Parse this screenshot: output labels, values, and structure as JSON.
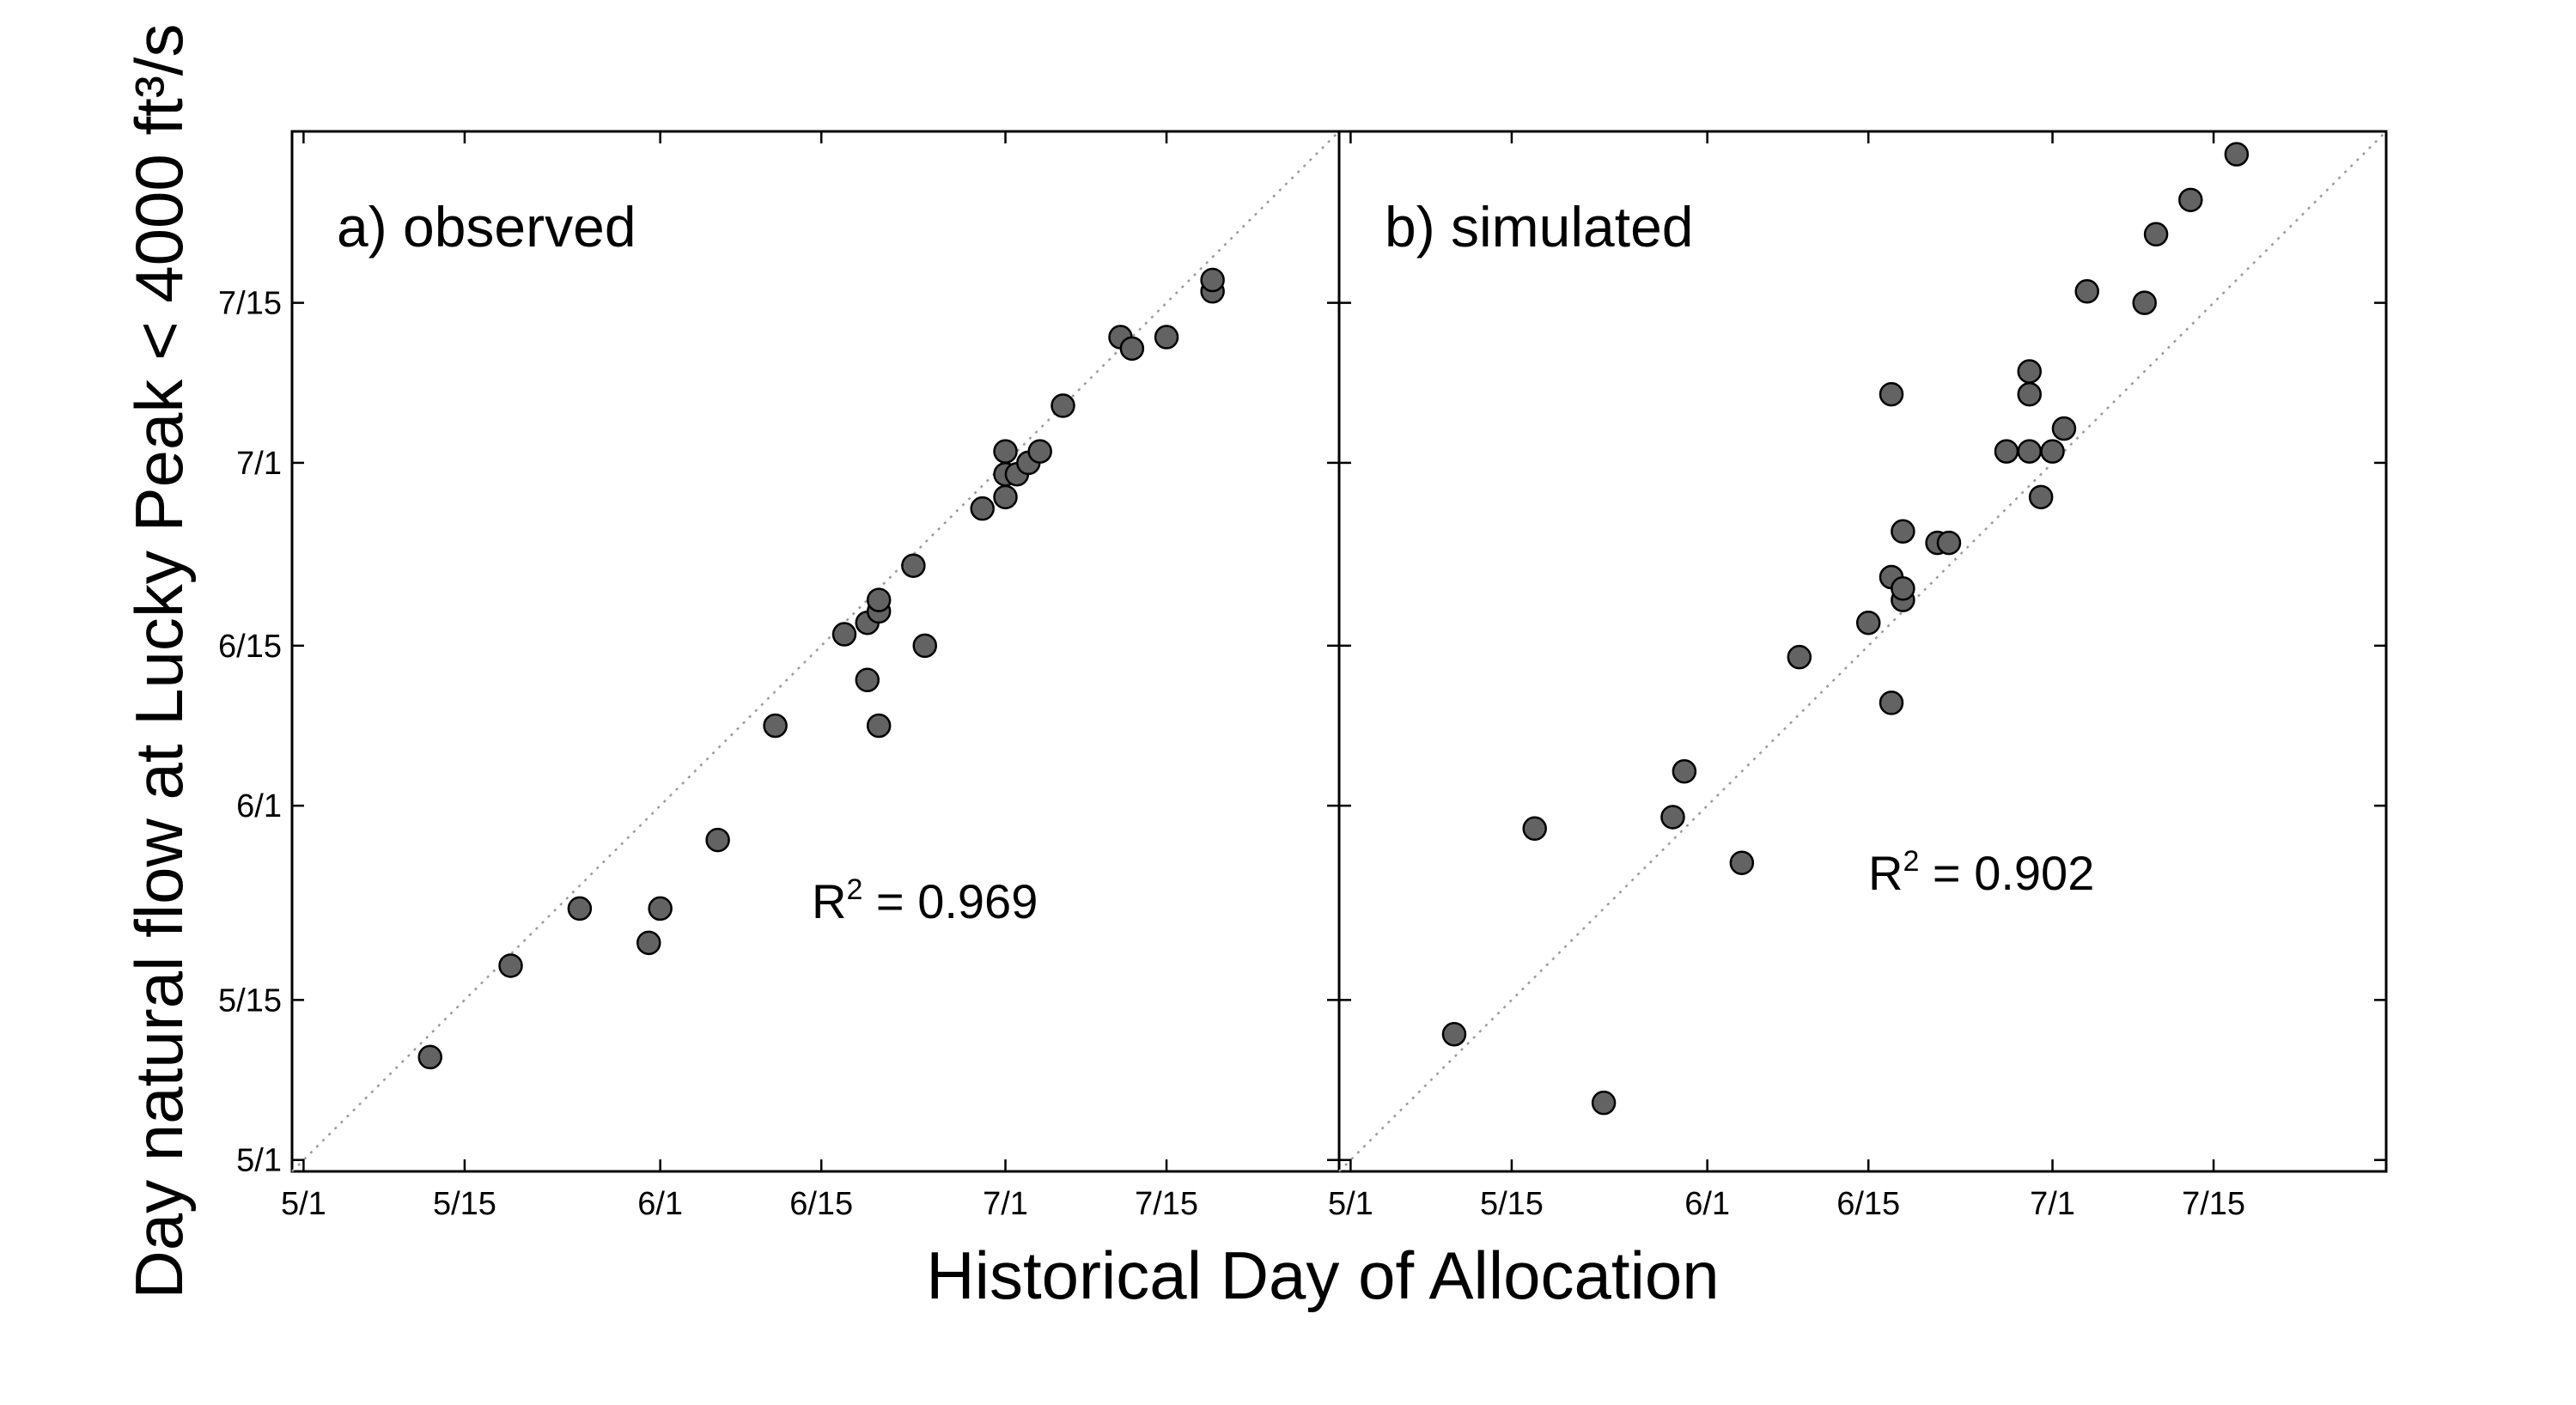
{
  "figure": {
    "xlabel": "Historical Day of Allocation",
    "ylabel": "Day natural flow at Lucky Peak < 4000 ft³/s"
  },
  "colors": {
    "marker_fill": "#636363",
    "marker_edge": "#000000",
    "reference_line": "#9a9a9a",
    "axes": "#000000"
  },
  "chart_data": [
    {
      "type": "scatter",
      "title": "",
      "panel_label": "a) observed",
      "r2_prefix": "R",
      "r2_sup": "2",
      "r2_value": " = 0.969",
      "x_unit": "days since 5/1",
      "xlim": [
        -1,
        90
      ],
      "ylim": [
        -1,
        90
      ],
      "xticks": [
        {
          "value": 0,
          "label": "5/1"
        },
        {
          "value": 14,
          "label": "5/15"
        },
        {
          "value": 31,
          "label": "6/1"
        },
        {
          "value": 45,
          "label": "6/15"
        },
        {
          "value": 61,
          "label": "7/1"
        },
        {
          "value": 75,
          "label": "7/15"
        }
      ],
      "yticks": [
        {
          "value": 0,
          "label": "5/1"
        },
        {
          "value": 14,
          "label": "5/15"
        },
        {
          "value": 31,
          "label": "6/1"
        },
        {
          "value": 45,
          "label": "6/15"
        },
        {
          "value": 61,
          "label": "7/1"
        },
        {
          "value": 75,
          "label": "7/15"
        }
      ],
      "reference_line": "y = x",
      "points": [
        {
          "x": 11,
          "y": 9
        },
        {
          "x": 18,
          "y": 17
        },
        {
          "x": 24,
          "y": 22
        },
        {
          "x": 30,
          "y": 19
        },
        {
          "x": 31,
          "y": 22
        },
        {
          "x": 36,
          "y": 28
        },
        {
          "x": 41,
          "y": 38
        },
        {
          "x": 47,
          "y": 46
        },
        {
          "x": 49,
          "y": 47
        },
        {
          "x": 49,
          "y": 42
        },
        {
          "x": 50,
          "y": 38
        },
        {
          "x": 50,
          "y": 48
        },
        {
          "x": 50,
          "y": 49
        },
        {
          "x": 53,
          "y": 52
        },
        {
          "x": 54,
          "y": 45
        },
        {
          "x": 59,
          "y": 57
        },
        {
          "x": 61,
          "y": 58
        },
        {
          "x": 61,
          "y": 60
        },
        {
          "x": 61,
          "y": 62
        },
        {
          "x": 62,
          "y": 60
        },
        {
          "x": 63,
          "y": 61
        },
        {
          "x": 64,
          "y": 62
        },
        {
          "x": 66,
          "y": 66
        },
        {
          "x": 71,
          "y": 72
        },
        {
          "x": 72,
          "y": 71
        },
        {
          "x": 75,
          "y": 72
        },
        {
          "x": 79,
          "y": 76
        },
        {
          "x": 79,
          "y": 77
        }
      ]
    },
    {
      "type": "scatter",
      "title": "",
      "panel_label": "b) simulated",
      "r2_prefix": "R",
      "r2_sup": "2",
      "r2_value": " = 0.902",
      "x_unit": "days since 5/1",
      "xlim": [
        -1,
        90
      ],
      "ylim": [
        -1,
        90
      ],
      "xticks": [
        {
          "value": 0,
          "label": "5/1"
        },
        {
          "value": 14,
          "label": "5/15"
        },
        {
          "value": 31,
          "label": "6/1"
        },
        {
          "value": 45,
          "label": "6/15"
        },
        {
          "value": 61,
          "label": "7/1"
        },
        {
          "value": 75,
          "label": "7/15"
        }
      ],
      "yticks": [
        {
          "value": 0,
          "label": "5/1"
        },
        {
          "value": 14,
          "label": "5/15"
        },
        {
          "value": 31,
          "label": "6/1"
        },
        {
          "value": 45,
          "label": "6/15"
        },
        {
          "value": 61,
          "label": "7/1"
        },
        {
          "value": 75,
          "label": "7/15"
        }
      ],
      "reference_line": "y = x",
      "points": [
        {
          "x": 9,
          "y": 11
        },
        {
          "x": 16,
          "y": 29
        },
        {
          "x": 22,
          "y": 5
        },
        {
          "x": 28,
          "y": 30
        },
        {
          "x": 29,
          "y": 34
        },
        {
          "x": 34,
          "y": 26
        },
        {
          "x": 39,
          "y": 44
        },
        {
          "x": 45,
          "y": 47
        },
        {
          "x": 47,
          "y": 40
        },
        {
          "x": 47,
          "y": 51
        },
        {
          "x": 47,
          "y": 67
        },
        {
          "x": 48,
          "y": 49
        },
        {
          "x": 48,
          "y": 50
        },
        {
          "x": 48,
          "y": 55
        },
        {
          "x": 51,
          "y": 54
        },
        {
          "x": 52,
          "y": 54
        },
        {
          "x": 57,
          "y": 62
        },
        {
          "x": 59,
          "y": 62
        },
        {
          "x": 59,
          "y": 67
        },
        {
          "x": 59,
          "y": 69
        },
        {
          "x": 60,
          "y": 58
        },
        {
          "x": 61,
          "y": 62
        },
        {
          "x": 62,
          "y": 64
        },
        {
          "x": 64,
          "y": 76
        },
        {
          "x": 69,
          "y": 75
        },
        {
          "x": 70,
          "y": 81
        },
        {
          "x": 73,
          "y": 84
        },
        {
          "x": 77,
          "y": 88
        }
      ]
    }
  ]
}
